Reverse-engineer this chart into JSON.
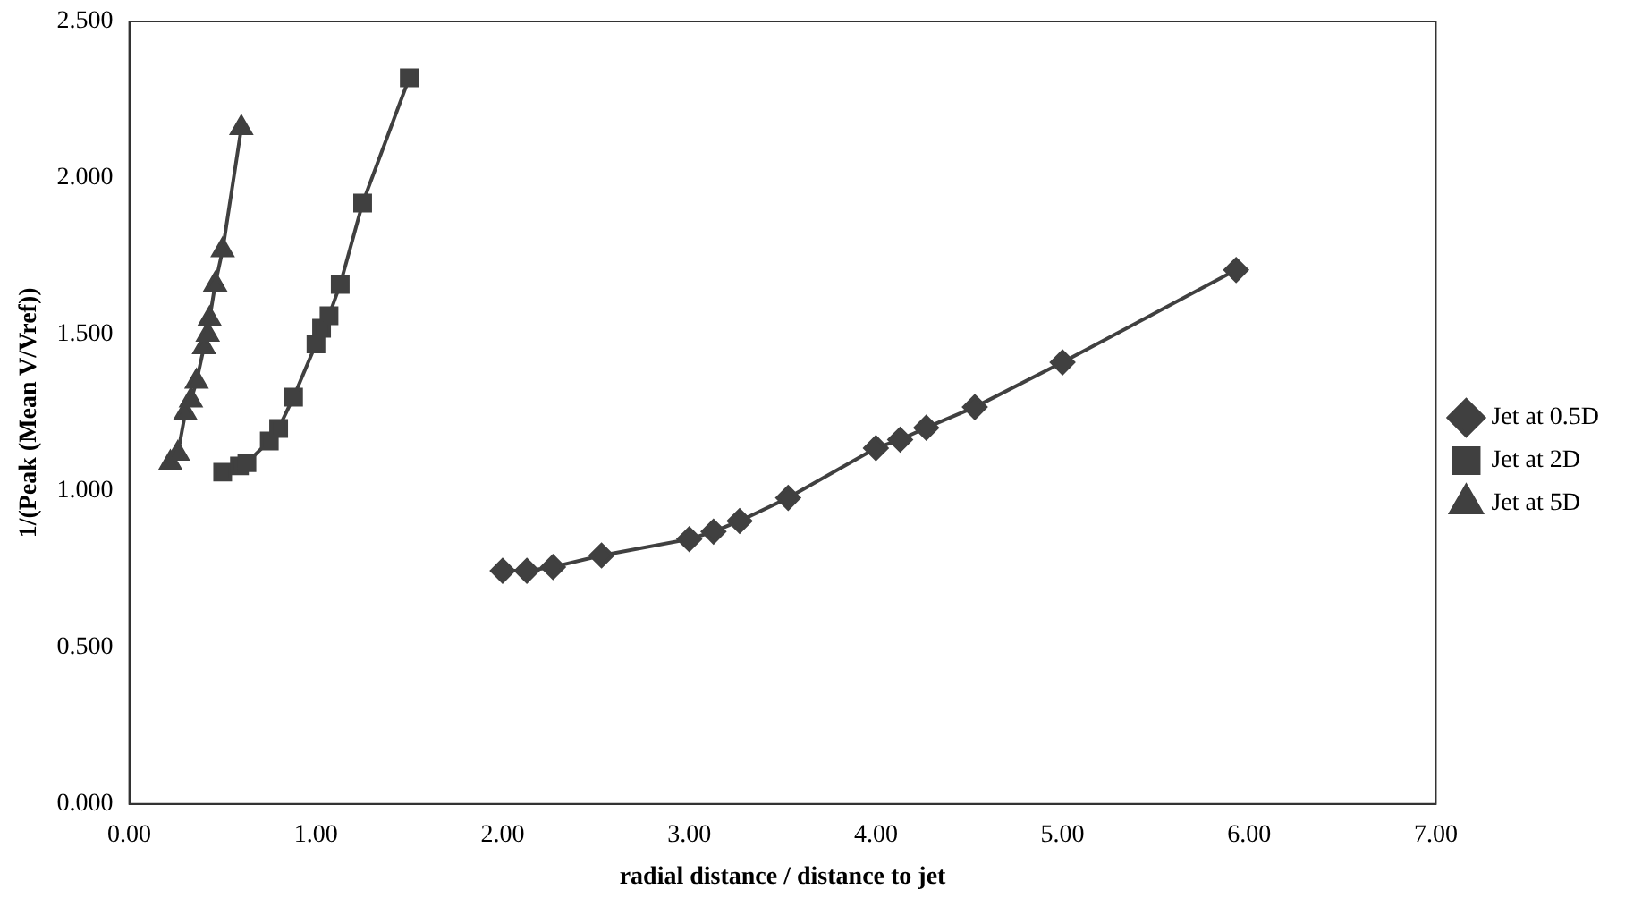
{
  "chart_data": {
    "type": "line",
    "xlabel": "radial distance / distance to jet",
    "ylabel": "1/(Peak (Mean V/Vref))",
    "xlim": [
      0,
      7
    ],
    "ylim": [
      0,
      2.5
    ],
    "xticks": [
      {
        "value": 0,
        "label": "0.00"
      },
      {
        "value": 1,
        "label": "1.00"
      },
      {
        "value": 2,
        "label": "2.00"
      },
      {
        "value": 3,
        "label": "3.00"
      },
      {
        "value": 4,
        "label": "4.00"
      },
      {
        "value": 5,
        "label": "5.00"
      },
      {
        "value": 6,
        "label": "6.00"
      },
      {
        "value": 7,
        "label": "7.00"
      }
    ],
    "yticks": [
      {
        "value": 0,
        "label": "0.000"
      },
      {
        "value": 0.5,
        "label": "0.500"
      },
      {
        "value": 1,
        "label": "1.000"
      },
      {
        "value": 1.5,
        "label": "1.500"
      },
      {
        "value": 2,
        "label": "2.000"
      },
      {
        "value": 2.5,
        "label": "2.500"
      }
    ],
    "grid": false,
    "legend": "right",
    "line_style": "solid",
    "series": [
      {
        "name": "Jet at 0.5D",
        "color": "#404040",
        "marker": "diamond",
        "x": [
          2.0,
          2.13,
          2.27,
          2.53,
          3.0,
          3.13,
          3.27,
          3.53,
          4.0,
          4.13,
          4.27,
          4.53,
          5.0,
          5.93
        ],
        "values": [
          0.745,
          0.745,
          0.757,
          0.794,
          0.846,
          0.87,
          0.904,
          0.978,
          1.137,
          1.164,
          1.202,
          1.268,
          1.411,
          1.706
        ]
      },
      {
        "name": "Jet at 2D",
        "color": "#404040",
        "marker": "square",
        "x": [
          0.5,
          0.59,
          0.63,
          0.75,
          0.8,
          0.88,
          1.0,
          1.03,
          1.07,
          1.13,
          1.25,
          1.5
        ],
        "values": [
          1.06,
          1.08,
          1.09,
          1.16,
          1.2,
          1.3,
          1.47,
          1.52,
          1.56,
          1.66,
          1.92,
          2.32
        ]
      },
      {
        "name": "Jet at 5D",
        "color": "#404040",
        "marker": "triangle",
        "x": [
          0.22,
          0.26,
          0.3,
          0.33,
          0.36,
          0.4,
          0.42,
          0.43,
          0.46,
          0.5,
          0.6
        ],
        "values": [
          1.09,
          1.12,
          1.25,
          1.29,
          1.35,
          1.46,
          1.5,
          1.55,
          1.66,
          1.77,
          2.16
        ]
      }
    ]
  }
}
